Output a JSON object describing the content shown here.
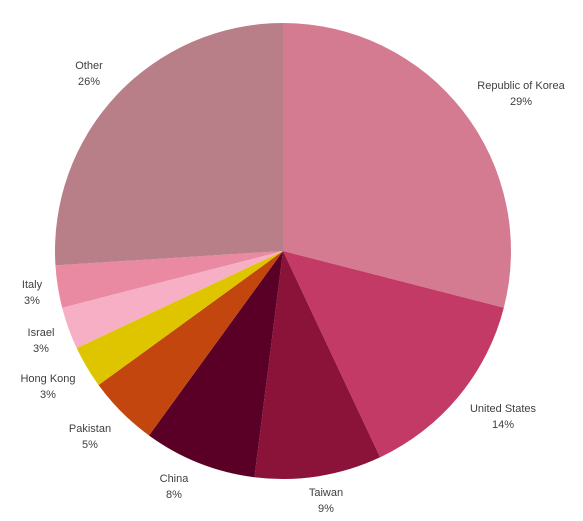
{
  "chart_data": {
    "type": "pie",
    "categories": [
      "Republic of Korea",
      "United States",
      "Taiwan",
      "China",
      "Pakistan",
      "Hong Kong",
      "Israel",
      "Italy",
      "Other"
    ],
    "values": [
      29,
      14,
      9,
      8,
      5,
      3,
      3,
      3,
      26
    ],
    "value_labels": [
      "29%",
      "14%",
      "9%",
      "8%",
      "5%",
      "3%",
      "3%",
      "3%",
      "26%"
    ],
    "colors": [
      "#d47b91",
      "#c33a66",
      "#8b1239",
      "#5a0026",
      "#c4460f",
      "#dfc500",
      "#f6afc4",
      "#e98aa2",
      "#b97f89"
    ]
  }
}
